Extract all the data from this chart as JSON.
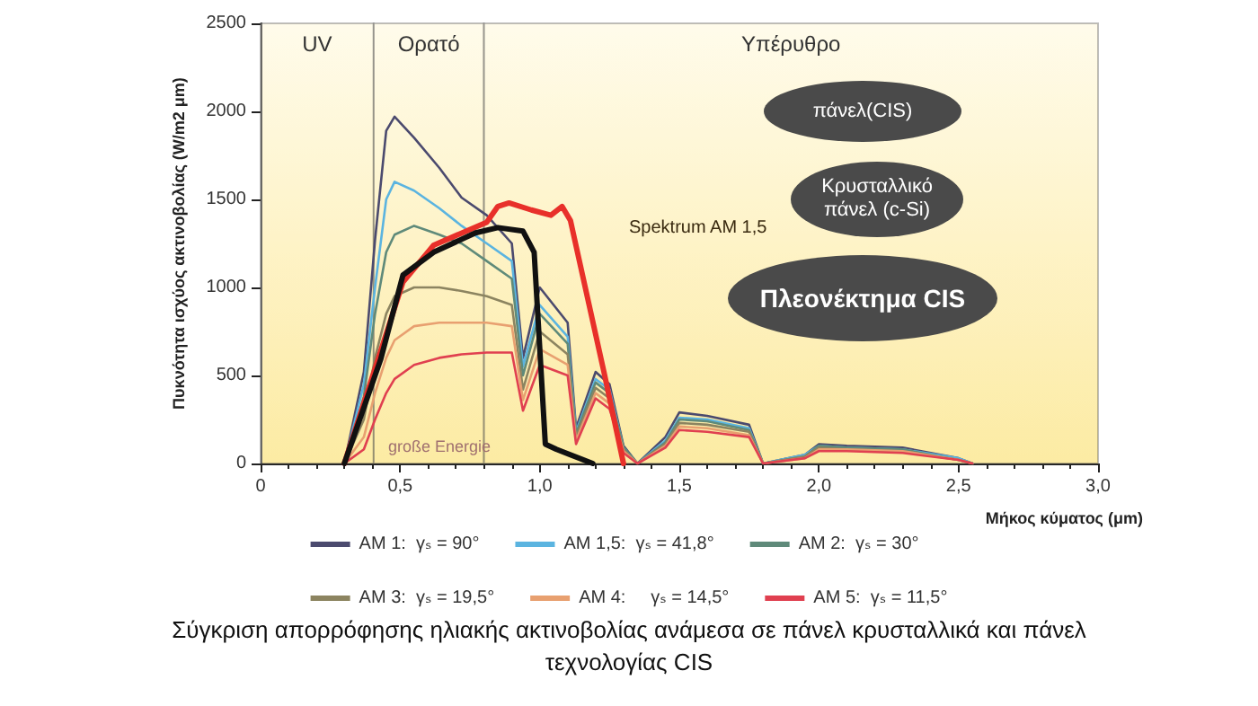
{
  "chart_data": {
    "type": "line",
    "title": "Σύγκριση απορρόφησης ηλιακής ακτινοβολίας ανάμεσα σε πάνελ κρυσταλλικά  και πάνελ τεχνολογίας CIS",
    "xlabel": "Μήκος κύματος (μm)",
    "ylabel": "Πυκνότητα ισχύος ακτινοβολίας (W/m2 μm)",
    "x": [
      0.3,
      0.37,
      0.41,
      0.45,
      0.48,
      0.55,
      0.64,
      0.72,
      0.81,
      0.9,
      0.94,
      1.0,
      1.1,
      1.13,
      1.2,
      1.25,
      1.3,
      1.35,
      1.45,
      1.5,
      1.6,
      1.75,
      1.8,
      1.95,
      2.0,
      2.1,
      2.3,
      2.5,
      2.55
    ],
    "series": [
      {
        "name": "AM 1:  γₛ = 90°",
        "color": "#4b4a6e",
        "values": [
          0,
          520,
          1270,
          1890,
          1970,
          1850,
          1680,
          1510,
          1410,
          1250,
          600,
          1000,
          800,
          200,
          520,
          450,
          100,
          0,
          150,
          290,
          270,
          220,
          0,
          50,
          110,
          100,
          90,
          30,
          0
        ]
      },
      {
        "name": "AM 1,5:  γₛ = 41,8°",
        "color": "#5bb4e0",
        "values": [
          0,
          450,
          1000,
          1500,
          1600,
          1550,
          1450,
          1350,
          1250,
          1150,
          550,
          900,
          720,
          180,
          480,
          420,
          90,
          0,
          130,
          260,
          250,
          200,
          0,
          50,
          100,
          90,
          80,
          30,
          0
        ]
      },
      {
        "name": "AM 2:  γₛ = 30°",
        "color": "#5f8a7a",
        "values": [
          0,
          380,
          850,
          1200,
          1300,
          1350,
          1300,
          1250,
          1150,
          1050,
          500,
          850,
          680,
          170,
          460,
          400,
          90,
          0,
          120,
          250,
          240,
          190,
          0,
          40,
          100,
          90,
          80,
          20,
          0
        ]
      },
      {
        "name": "AM 3:  γₛ = 19,5°",
        "color": "#8c8460",
        "values": [
          0,
          250,
          600,
          850,
          950,
          1000,
          1000,
          980,
          950,
          900,
          420,
          750,
          620,
          150,
          430,
          370,
          80,
          0,
          110,
          230,
          220,
          180,
          0,
          40,
          90,
          80,
          70,
          20,
          0
        ]
      },
      {
        "name": "AM 4:     γₛ = 14,5°",
        "color": "#e8a070",
        "values": [
          0,
          150,
          400,
          600,
          700,
          780,
          800,
          800,
          800,
          780,
          360,
          650,
          560,
          130,
          400,
          340,
          70,
          0,
          100,
          210,
          200,
          160,
          0,
          30,
          80,
          80,
          70,
          20,
          0
        ]
      },
      {
        "name": "AM 5:  γₛ = 11,5°",
        "color": "#e04050",
        "values": [
          0,
          80,
          250,
          400,
          480,
          560,
          600,
          620,
          630,
          630,
          300,
          560,
          500,
          110,
          370,
          310,
          60,
          0,
          90,
          190,
          180,
          150,
          0,
          30,
          70,
          70,
          60,
          20,
          0
        ]
      },
      {
        "color": "#e8302a",
        "x": [
          0.3,
          0.51,
          0.62,
          0.81,
          0.85,
          0.89,
          0.97,
          1.04,
          1.08,
          1.11,
          1.23,
          1.3
        ],
        "values": [
          0,
          1030,
          1240,
          1370,
          1460,
          1480,
          1440,
          1410,
          1460,
          1380,
          520,
          0
        ]
      },
      {
        "color": "#111111",
        "x": [
          0.3,
          0.43,
          0.51,
          0.62,
          0.77,
          0.85,
          0.94,
          0.98,
          1.02,
          1.06,
          1.19
        ],
        "values": [
          0,
          590,
          1070,
          1200,
          1310,
          1340,
          1320,
          1200,
          110,
          80,
          0
        ]
      }
    ],
    "xlim": [
      0,
      3
    ],
    "xticks": [
      0,
      {
        "value": 0.5,
        "label": "0,5"
      },
      {
        "value": 1,
        "label": "1,0"
      },
      {
        "value": 1.5,
        "label": "1,5"
      },
      {
        "value": 2,
        "label": "2,0"
      },
      {
        "value": 2.5,
        "label": "2,5"
      },
      {
        "value": 3,
        "label": "3,0"
      }
    ],
    "ylim": [
      0,
      2500
    ],
    "yticks": [
      0,
      500,
      1000,
      1500,
      2000,
      2500
    ],
    "bands": [
      {
        "axis": "x",
        "from": 0,
        "to": 0.405,
        "label": "UV",
        "color": "#fffdf2"
      },
      {
        "axis": "x",
        "from": 0.405,
        "to": 0.8,
        "label": "Ορατό",
        "color": "#fffdf2"
      },
      {
        "axis": "x",
        "from": 0.8,
        "to": 3,
        "label": "Υπέρυθρο",
        "color": "#fffdf2"
      }
    ],
    "annotations": [
      "Spektrum AM 1,5",
      "große Energie",
      "πάνελ(CIS)",
      "Κρυσταλλικό πάνελ  (c-Si)",
      "Πλεονέκτημα CIS"
    ],
    "legend": "bottom",
    "grid": false,
    "marker": "none",
    "line_style": "solid"
  }
}
